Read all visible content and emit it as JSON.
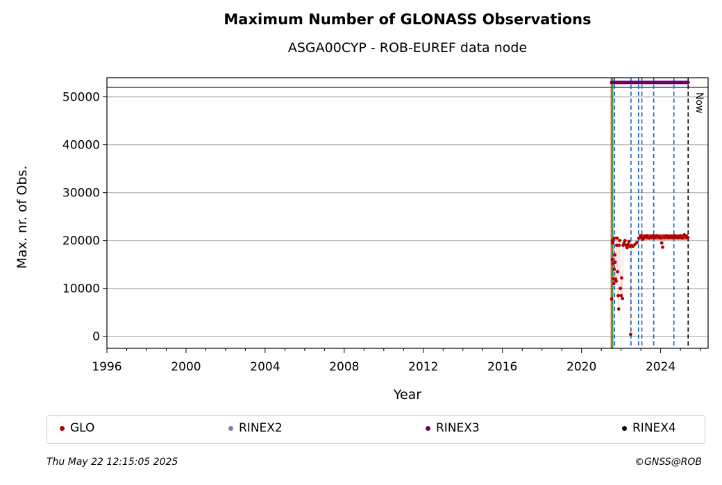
{
  "chart_data": {
    "type": "scatter",
    "title": "Maximum Number of GLONASS Observations",
    "subtitle": "ASGA00CYP - ROB-EUREF data node",
    "xlabel": "Year",
    "ylabel": "Max. nr. of Obs.",
    "xlim": [
      1996,
      2026.4
    ],
    "ylim": [
      -2500,
      54000
    ],
    "x_ticks": [
      1996,
      2000,
      2004,
      2008,
      2012,
      2016,
      2020,
      2024
    ],
    "y_ticks": [
      0,
      10000,
      20000,
      30000,
      40000,
      50000
    ],
    "grid": "y",
    "legend_placement": "below",
    "reference_line_y": 52000,
    "now_label": "Now",
    "now_x": 2025.39,
    "green_line_x": 2021.58,
    "red_line_x": 2021.5,
    "blue_dashed_x": [
      2021.67,
      2022.5,
      2022.88,
      2023.05,
      2023.65,
      2024.67
    ],
    "series": [
      {
        "name": "GLO",
        "color": "#b00000",
        "points": [
          [
            2021.52,
            7800
          ],
          [
            2021.55,
            16000
          ],
          [
            2021.57,
            20000
          ],
          [
            2021.58,
            19500
          ],
          [
            2021.6,
            15200
          ],
          [
            2021.62,
            12000
          ],
          [
            2021.63,
            11000
          ],
          [
            2021.65,
            14000
          ],
          [
            2021.66,
            20500
          ],
          [
            2021.68,
            17000
          ],
          [
            2021.7,
            15500
          ],
          [
            2021.72,
            12000
          ],
          [
            2021.75,
            11500
          ],
          [
            2021.78,
            19000
          ],
          [
            2021.8,
            20500
          ],
          [
            2021.82,
            13500
          ],
          [
            2021.85,
            8500
          ],
          [
            2021.88,
            5700
          ],
          [
            2021.9,
            19000
          ],
          [
            2021.93,
            20000
          ],
          [
            2021.96,
            10000
          ],
          [
            2022.0,
            8500
          ],
          [
            2022.03,
            12200
          ],
          [
            2022.07,
            7900
          ],
          [
            2022.1,
            19000
          ],
          [
            2022.15,
            19500
          ],
          [
            2022.2,
            20000
          ],
          [
            2022.25,
            19000
          ],
          [
            2022.3,
            18500
          ],
          [
            2022.35,
            19200
          ],
          [
            2022.4,
            19800
          ],
          [
            2022.45,
            18800
          ],
          [
            2022.48,
            400
          ],
          [
            2022.52,
            19000
          ],
          [
            2022.6,
            18800
          ],
          [
            2022.7,
            19200
          ],
          [
            2022.8,
            19600
          ],
          [
            2022.9,
            20500
          ],
          [
            2023.0,
            21000
          ],
          [
            2023.1,
            20300
          ],
          [
            2023.2,
            20800
          ],
          [
            2023.3,
            21000
          ],
          [
            2023.4,
            20500
          ],
          [
            2023.5,
            20700
          ],
          [
            2023.6,
            21000
          ],
          [
            2023.7,
            20600
          ],
          [
            2023.8,
            21000
          ],
          [
            2023.9,
            20800
          ],
          [
            2024.0,
            20500
          ],
          [
            2024.05,
            19500
          ],
          [
            2024.1,
            18600
          ],
          [
            2024.2,
            20800
          ],
          [
            2024.3,
            21000
          ],
          [
            2024.4,
            20600
          ],
          [
            2024.5,
            20900
          ],
          [
            2024.6,
            20700
          ],
          [
            2024.7,
            21000
          ],
          [
            2024.8,
            20800
          ],
          [
            2024.9,
            20600
          ],
          [
            2025.0,
            21000
          ],
          [
            2025.1,
            20500
          ],
          [
            2025.2,
            21200
          ],
          [
            2025.3,
            20800
          ],
          [
            2025.38,
            20600
          ]
        ]
      },
      {
        "name": "RINEX2",
        "color": "#7b7bbd",
        "points": []
      },
      {
        "name": "RINEX3",
        "color": "#6a006a",
        "points": [
          [
            2021.52,
            53000
          ],
          [
            2025.39,
            53000
          ]
        ]
      },
      {
        "name": "RINEX4",
        "color": "#1a0010",
        "points": []
      }
    ]
  },
  "footer": {
    "timestamp": "Thu May 22 12:15:05 2025",
    "copyright": "©GNSS@ROB"
  }
}
